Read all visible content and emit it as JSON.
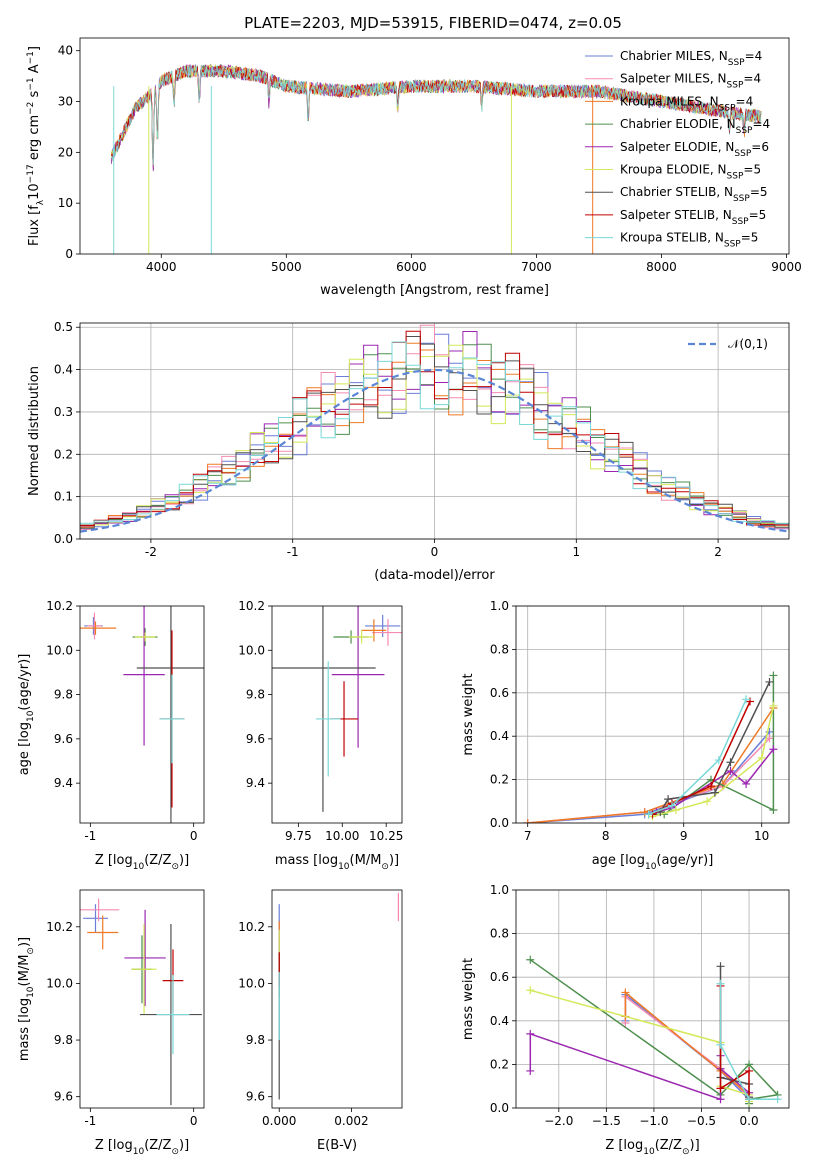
{
  "figure": {
    "title": "PLATE=2203, MJD=53915, FIBERID=0474, z=0.05"
  },
  "models": [
    {
      "name": "Chabrier MILES, N$_{SSP}$=4",
      "label_main": "Chabrier MILES, N",
      "label_sub": "SSP",
      "label_end": "=4",
      "color": "#6a7fd8"
    },
    {
      "name": "Salpeter MILES, N$_{SSP}$=4",
      "label_main": "Salpeter MILES, N",
      "label_sub": "SSP",
      "label_end": "=4",
      "color": "#f58ab2"
    },
    {
      "name": "Kroupa MILES, N$_{SSP}$=4",
      "label_main": "Kroupa MILES, N",
      "label_sub": "SSP",
      "label_end": "=4",
      "color": "#ee7a25"
    },
    {
      "name": "Chabrier ELODIE, N$_{SSP}$=4",
      "label_main": "Chabrier ELODIE, N",
      "label_sub": "SSP",
      "label_end": "=4",
      "color": "#4e8f4e"
    },
    {
      "name": "Salpeter ELODIE, N$_{SSP}$=6",
      "label_main": "Salpeter ELODIE, N",
      "label_sub": "SSP",
      "label_end": "=6",
      "color": "#9b27b0"
    },
    {
      "name": "Kroupa ELODIE, N$_{SSP}$=5",
      "label_main": "Kroupa ELODIE, N",
      "label_sub": "SSP",
      "label_end": "=5",
      "color": "#d4e85a"
    },
    {
      "name": "Chabrier STELIB, N$_{SSP}$=5",
      "label_main": "Chabrier STELIB, N",
      "label_sub": "SSP",
      "label_end": "=5",
      "color": "#505050"
    },
    {
      "name": "Salpeter STELIB, N$_{SSP}$=5",
      "label_main": "Salpeter STELIB, N",
      "label_sub": "SSP",
      "label_end": "=5",
      "color": "#c00000"
    },
    {
      "name": "Kroupa STELIB, N$_{SSP}$=5",
      "label_main": "Kroupa STELIB, N",
      "label_sub": "SSP",
      "label_end": "=5",
      "color": "#7ad8d8"
    }
  ],
  "chart_data": [
    {
      "id": "spectrum",
      "type": "line",
      "xlabel": "wavelength [Angstrom, rest frame]",
      "ylabel": "Flux [f_λ 10^-17 erg cm^-2 s^-1 A^-1]",
      "ylabel_main": "Flux [f",
      "xlim": [
        3350,
        9020
      ],
      "ylim": [
        0,
        42.5
      ],
      "xticks": [
        4000,
        5000,
        6000,
        7000,
        8000,
        9000
      ],
      "yticks": [
        0,
        10,
        20,
        30,
        40
      ],
      "legend": "upper-right",
      "x_range": [
        3600,
        8800
      ],
      "continuum": [
        [
          3600,
          19
        ],
        [
          3700,
          24
        ],
        [
          3800,
          29
        ],
        [
          3950,
          32
        ],
        [
          4000,
          34
        ],
        [
          4200,
          36
        ],
        [
          4500,
          36
        ],
        [
          4800,
          35
        ],
        [
          5000,
          33
        ],
        [
          5500,
          32
        ],
        [
          6000,
          33
        ],
        [
          6500,
          33
        ],
        [
          7000,
          32
        ],
        [
          7500,
          32
        ],
        [
          8000,
          30
        ],
        [
          8500,
          28
        ],
        [
          8800,
          27
        ]
      ],
      "features": [
        [
          3934,
          17
        ],
        [
          3969,
          12
        ],
        [
          4102,
          6
        ],
        [
          4304,
          6
        ],
        [
          4861,
          5
        ],
        [
          5175,
          7
        ],
        [
          5890,
          5
        ],
        [
          6563,
          4
        ],
        [
          8542,
          4
        ],
        [
          8662,
          4
        ]
      ],
      "spikes": [
        [
          3620,
          0
        ],
        [
          3900,
          0
        ],
        [
          4400,
          0
        ],
        [
          7450,
          0
        ],
        [
          6800,
          0
        ]
      ]
    },
    {
      "id": "residuals",
      "type": "area",
      "xlabel": "(data-model)/error",
      "ylabel": "Normed distribution",
      "xlim": [
        -2.5,
        2.5
      ],
      "ylim": [
        0,
        0.51
      ],
      "xticks": [
        -2,
        -1,
        0,
        1,
        2
      ],
      "yticks": [
        0.0,
        0.1,
        0.2,
        0.3,
        0.4,
        0.5
      ],
      "grid": true,
      "legend": "upper-right",
      "reference_label": "𝒩(0,1)",
      "reference_color": "#5b86d6",
      "bin_width": 0.1,
      "series_seed": [
        0.3,
        0.7,
        1.1,
        1.5,
        1.9,
        2.3,
        2.7,
        3.1,
        3.5
      ]
    },
    {
      "id": "age_vs_Z",
      "type": "scatter",
      "xlabel_main": "Z [log",
      "xlabel_tail": "(Z/Z",
      "xlabel_end": ")]",
      "ylabel_main": "age  [log",
      "ylabel_tail": "(age/yr)]",
      "xlim": [
        -1.1,
        0.1
      ],
      "ylim": [
        9.22,
        10.2
      ],
      "xticks": [
        -1,
        0
      ],
      "yticks": [
        9.4,
        9.6,
        9.8,
        10.0,
        10.2
      ],
      "points": [
        {
          "m": 0,
          "x": -0.97,
          "y": 10.11,
          "xe": 0.09,
          "ye": 0.04
        },
        {
          "m": 1,
          "x": -0.96,
          "y": 10.11,
          "xe": 0.07,
          "ye": 0.06
        },
        {
          "m": 2,
          "x": -0.95,
          "y": 10.1,
          "xe": 0.2,
          "ye": 0.03
        },
        {
          "m": 3,
          "x": -0.47,
          "y": 10.06,
          "xe": 0.12,
          "ye": 0.04
        },
        {
          "m": 4,
          "x": -0.48,
          "y": 9.89,
          "xe": 0.2,
          "ye": 0.32
        },
        {
          "m": 5,
          "x": -0.47,
          "y": 10.06,
          "xe": 0.1,
          "ye": 0.02
        },
        {
          "m": 6,
          "x": -0.22,
          "y": 9.92,
          "xe": 0.33,
          "ye": 0.72
        },
        {
          "m": 7,
          "x": -0.21,
          "y": 9.69,
          "xe": 0.12,
          "ye": 0.4
        },
        {
          "m": 8,
          "x": -0.21,
          "y": 9.69,
          "xe": 0.12,
          "ye": 0.2
        }
      ]
    },
    {
      "id": "age_vs_mass",
      "type": "scatter",
      "xlabel_main": "mass [log",
      "xlabel_tail": "(M/M",
      "xlabel_end": ")]",
      "xlim": [
        9.6,
        10.34
      ],
      "ylim": [
        9.22,
        10.2
      ],
      "xticks": [
        9.75,
        10.0,
        10.25
      ],
      "xticklabels": [
        "9.75",
        "10.00",
        "10.25"
      ],
      "yticks": [
        9.4,
        9.6,
        9.8,
        10.0,
        10.2
      ],
      "points": [
        {
          "m": 0,
          "x": 10.23,
          "y": 10.11,
          "xe": 0.1,
          "ye": 0.05
        },
        {
          "m": 1,
          "x": 10.26,
          "y": 10.08,
          "xe": 0.09,
          "ye": 0.06
        },
        {
          "m": 2,
          "x": 10.18,
          "y": 10.09,
          "xe": 0.07,
          "ye": 0.05
        },
        {
          "m": 3,
          "x": 10.05,
          "y": 10.06,
          "xe": 0.1,
          "ye": 0.03
        },
        {
          "m": 4,
          "x": 10.09,
          "y": 9.89,
          "xe": 0.15,
          "ye": 0.33
        },
        {
          "m": 5,
          "x": 10.11,
          "y": 10.06,
          "xe": 0.07,
          "ye": 0.03
        },
        {
          "m": 6,
          "x": 9.89,
          "y": 9.92,
          "xe": 0.3,
          "ye": 0.65
        },
        {
          "m": 7,
          "x": 10.01,
          "y": 9.69,
          "xe": 0.08,
          "ye": 0.17
        },
        {
          "m": 8,
          "x": 9.92,
          "y": 9.69,
          "xe": 0.07,
          "ye": 0.26
        }
      ]
    },
    {
      "id": "weight_vs_age",
      "type": "line",
      "xlabel_main": "age  [log",
      "xlabel_tail": "(age/yr)]",
      "ylabel": "mass weight",
      "xlim": [
        6.85,
        10.35
      ],
      "ylim": [
        0,
        1
      ],
      "xticks": [
        7,
        8,
        9,
        10
      ],
      "yticks": [
        0.0,
        0.2,
        0.4,
        0.6,
        0.8,
        1.0
      ],
      "grid": true,
      "series": [
        {
          "m": 0,
          "x": [
            7.0,
            8.5,
            9.5,
            10.1
          ],
          "y": [
            0.0,
            0.04,
            0.17,
            0.42
          ]
        },
        {
          "m": 1,
          "x": [
            7.0,
            8.5,
            9.5,
            10.1
          ],
          "y": [
            0.0,
            0.05,
            0.17,
            0.39
          ]
        },
        {
          "m": 2,
          "x": [
            7.0,
            8.5,
            9.5,
            10.15
          ],
          "y": [
            0.0,
            0.05,
            0.18,
            0.53
          ]
        },
        {
          "m": 3,
          "x": [
            8.55,
            8.75,
            9.35,
            10.15,
            10.15
          ],
          "y": [
            0.04,
            0.04,
            0.2,
            0.06,
            0.68
          ]
        },
        {
          "m": 4,
          "x": [
            8.65,
            8.85,
            9.6,
            9.8,
            10.15
          ],
          "y": [
            0.05,
            0.07,
            0.24,
            0.18,
            0.34
          ]
        },
        {
          "m": 5,
          "x": [
            8.6,
            8.9,
            9.3,
            10.0,
            10.15
          ],
          "y": [
            0.03,
            0.06,
            0.1,
            0.3,
            0.54
          ]
        },
        {
          "m": 6,
          "x": [
            8.7,
            8.8,
            9.4,
            9.6,
            10.1
          ],
          "y": [
            0.05,
            0.11,
            0.14,
            0.28,
            0.65
          ]
        },
        {
          "m": 7,
          "x": [
            8.6,
            8.85,
            9.35,
            9.85
          ],
          "y": [
            0.04,
            0.09,
            0.17,
            0.56
          ]
        },
        {
          "m": 8,
          "x": [
            8.55,
            8.85,
            9.45,
            9.8
          ],
          "y": [
            0.04,
            0.08,
            0.29,
            0.57
          ]
        }
      ]
    },
    {
      "id": "mass_vs_Z",
      "type": "scatter",
      "xlabel_main": "Z [log",
      "xlabel_tail": "(Z/Z",
      "xlabel_end": ")]",
      "ylabel_main": "mass [log",
      "ylabel_tail": "(M/M",
      "ylabel_end": ")]",
      "xlim": [
        -1.1,
        0.1
      ],
      "ylim": [
        9.56,
        10.33
      ],
      "xticks": [
        -1,
        0
      ],
      "yticks": [
        9.6,
        9.8,
        10.0,
        10.2
      ],
      "points": [
        {
          "m": 0,
          "x": -0.95,
          "y": 10.23,
          "xe": 0.12,
          "ye": 0.05
        },
        {
          "m": 1,
          "x": -0.92,
          "y": 10.26,
          "xe": 0.2,
          "ye": 0.04
        },
        {
          "m": 2,
          "x": -0.88,
          "y": 10.18,
          "xe": 0.15,
          "ye": 0.06
        },
        {
          "m": 3,
          "x": -0.5,
          "y": 10.05,
          "xe": 0.1,
          "ye": 0.12
        },
        {
          "m": 4,
          "x": -0.47,
          "y": 10.09,
          "xe": 0.2,
          "ye": 0.17
        },
        {
          "m": 5,
          "x": -0.48,
          "y": 10.05,
          "xe": 0.12,
          "ye": 0.16
        },
        {
          "m": 6,
          "x": -0.22,
          "y": 9.89,
          "xe": 0.3,
          "ye": 0.32
        },
        {
          "m": 7,
          "x": -0.2,
          "y": 10.01,
          "xe": 0.1,
          "ye": 0.11
        },
        {
          "m": 8,
          "x": -0.2,
          "y": 9.89,
          "xe": 0.16,
          "ye": 0.14
        }
      ]
    },
    {
      "id": "mass_vs_ebv",
      "type": "scatter",
      "xlabel": "E(B-V)",
      "xlim": [
        -0.0002,
        0.0034
      ],
      "ylim": [
        9.56,
        10.33
      ],
      "xticks": [
        0.0,
        0.002
      ],
      "xticklabels": [
        "0.000",
        "0.002"
      ],
      "yticks": [
        9.6,
        9.8,
        10.0,
        10.2
      ],
      "points": [
        {
          "m": 0,
          "x": 0.0,
          "y": 10.22,
          "xe": 0.0,
          "ye": 0.06
        },
        {
          "m": 1,
          "x": 0.0033,
          "y": 10.27,
          "xe": 0.0,
          "ye": 0.05
        },
        {
          "m": 2,
          "x": 0.0,
          "y": 10.18,
          "xe": 0.0,
          "ye": 0.04
        },
        {
          "m": 3,
          "x": 0.0,
          "y": 10.05,
          "xe": 0.0,
          "ye": 0.1
        },
        {
          "m": 4,
          "x": 0.0,
          "y": 10.09,
          "xe": 0.0,
          "ye": 0.1
        },
        {
          "m": 5,
          "x": 0.0,
          "y": 10.11,
          "xe": 0.0,
          "ye": 0.08
        },
        {
          "m": 6,
          "x": 0.0,
          "y": 9.85,
          "xe": 0.0,
          "ye": 0.26
        },
        {
          "m": 7,
          "x": 0.0,
          "y": 10.05,
          "xe": 0.0,
          "ye": 0.06
        },
        {
          "m": 8,
          "x": 0.0,
          "y": 9.92,
          "xe": 0.0,
          "ye": 0.12
        }
      ]
    },
    {
      "id": "weight_vs_Z",
      "type": "line",
      "xlabel_main": "Z [log",
      "xlabel_tail": "(Z/Z",
      "xlabel_end": ")]",
      "ylabel": "mass weight",
      "xlim": [
        -2.45,
        0.42
      ],
      "ylim": [
        0,
        1
      ],
      "xticks": [
        -2.0,
        -1.5,
        -1.0,
        -0.5,
        0.0
      ],
      "xticklabels": [
        "−2.0",
        "−1.5",
        "−1.0",
        "−0.5",
        "0.0"
      ],
      "yticks": [
        0.0,
        0.2,
        0.4,
        0.6,
        0.8,
        1.0
      ],
      "grid": true,
      "series": [
        {
          "m": 0,
          "x": [
            -1.3,
            -1.3,
            -0.3,
            0.0
          ],
          "y": [
            0.4,
            0.52,
            0.17,
            0.04
          ]
        },
        {
          "m": 1,
          "x": [
            -1.3,
            -1.3,
            -0.3,
            0.0
          ],
          "y": [
            0.39,
            0.51,
            0.18,
            0.05
          ]
        },
        {
          "m": 2,
          "x": [
            -1.3,
            -1.3,
            -0.3,
            0.0
          ],
          "y": [
            0.42,
            0.53,
            0.17,
            0.06
          ]
        },
        {
          "m": 3,
          "x": [
            -2.3,
            -0.3,
            0.0,
            0.3,
            0.0,
            0.0
          ],
          "y": [
            0.68,
            0.06,
            0.2,
            0.06,
            0.04,
            0.02
          ]
        },
        {
          "m": 4,
          "x": [
            -2.3,
            -2.3,
            -0.3,
            -0.3,
            -0.3,
            0.0
          ],
          "y": [
            0.17,
            0.34,
            0.04,
            0.24,
            0.18,
            0.07
          ]
        },
        {
          "m": 5,
          "x": [
            -2.3,
            -0.3,
            -0.3,
            0.0,
            0.0
          ],
          "y": [
            0.54,
            0.3,
            0.1,
            0.06,
            0.03
          ]
        },
        {
          "m": 6,
          "x": [
            -0.3,
            -0.3,
            0.0,
            0.0
          ],
          "y": [
            0.65,
            0.14,
            0.11,
            0.05
          ]
        },
        {
          "m": 7,
          "x": [
            -0.3,
            -0.3,
            0.0,
            0.0
          ],
          "y": [
            0.56,
            0.09,
            0.17,
            0.04
          ]
        },
        {
          "m": 8,
          "x": [
            -0.3,
            -0.3,
            0.0,
            0.3
          ],
          "y": [
            0.57,
            0.29,
            0.04,
            0.04
          ]
        }
      ]
    }
  ]
}
